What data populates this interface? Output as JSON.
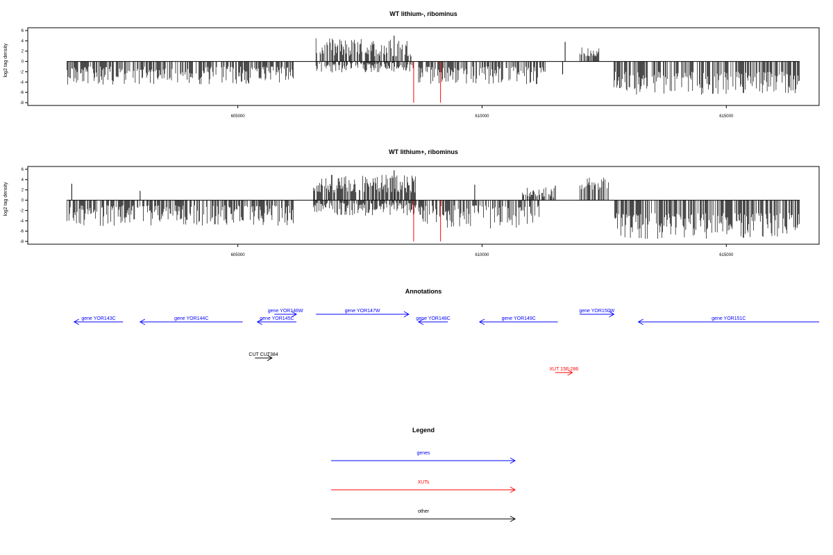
{
  "colors": {
    "genes": "#0000ff",
    "xuts": "#ff0000",
    "other": "#000000",
    "bars": "#000000",
    "marker": "#ff0000"
  },
  "chart_data": [
    {
      "type": "bar",
      "title": "WT lithium-, ribominus",
      "ylabel": "log2 tag density",
      "xlim": [
        600700,
        616900
      ],
      "ylim": [
        -8,
        6
      ],
      "xticks": [
        605000,
        610000,
        615000
      ],
      "xtick_labels": [
        "605000",
        "610000",
        "615000"
      ],
      "yticks": [
        6,
        4,
        2,
        0,
        -2,
        -4,
        -6,
        -8
      ],
      "ytick_labels": [
        "6",
        "4",
        "2",
        "0",
        "-2",
        "-4",
        "-6",
        "-8"
      ],
      "grid": false,
      "marker_positions": [
        608600,
        609150
      ],
      "segments": [
        {
          "start": 601500,
          "end": 606150,
          "strand": "minus",
          "min": 1.0,
          "max": 4.5
        },
        {
          "start": 606600,
          "end": 608600,
          "strand": "plus",
          "min": 1.0,
          "max": 4.5
        },
        {
          "start": 606600,
          "end": 608600,
          "strand": "minus",
          "min": 0.3,
          "max": 2.2
        },
        {
          "start": 608700,
          "end": 611300,
          "strand": "minus",
          "min": 1.0,
          "max": 4.5
        },
        {
          "start": 612000,
          "end": 612400,
          "strand": "plus",
          "min": 1.0,
          "max": 2.8
        },
        {
          "start": 612700,
          "end": 616500,
          "strand": "minus",
          "min": 2.0,
          "max": 6.5
        }
      ],
      "spikes": [
        {
          "x": 608200,
          "value": 5.0
        },
        {
          "x": 611700,
          "value": 3.8
        },
        {
          "x": 611650,
          "value": -2.5
        }
      ]
    },
    {
      "type": "bar",
      "title": "WT lithium+, ribominus",
      "ylabel": "log2 tag density",
      "xlim": [
        600700,
        616900
      ],
      "ylim": [
        -8,
        6
      ],
      "xticks": [
        605000,
        610000,
        615000
      ],
      "xtick_labels": [
        "605000",
        "610000",
        "615000"
      ],
      "yticks": [
        6,
        4,
        2,
        0,
        -2,
        -4,
        -6,
        -8
      ],
      "ytick_labels": [
        "6",
        "4",
        "2",
        "0",
        "-2",
        "-4",
        "-6",
        "-8"
      ],
      "grid": false,
      "marker_positions": [
        608600,
        609150
      ],
      "segments": [
        {
          "start": 601500,
          "end": 606150,
          "strand": "minus",
          "min": 1.0,
          "max": 5.0
        },
        {
          "start": 606550,
          "end": 608650,
          "strand": "plus",
          "min": 1.5,
          "max": 5.0
        },
        {
          "start": 606550,
          "end": 608650,
          "strand": "minus",
          "min": 0.5,
          "max": 3.0
        },
        {
          "start": 608700,
          "end": 611200,
          "strand": "minus",
          "min": 1.0,
          "max": 5.5
        },
        {
          "start": 610800,
          "end": 611500,
          "strand": "plus",
          "min": 0.5,
          "max": 2.5
        },
        {
          "start": 612000,
          "end": 612600,
          "strand": "plus",
          "min": 2.0,
          "max": 4.5
        },
        {
          "start": 612700,
          "end": 616500,
          "strand": "minus",
          "min": 2.5,
          "max": 7.5
        }
      ],
      "spikes": [
        {
          "x": 601600,
          "value": 3.2
        },
        {
          "x": 603000,
          "value": 1.8
        },
        {
          "x": 608200,
          "value": 5.8
        },
        {
          "x": 611500,
          "value": 2.8
        },
        {
          "x": 609850,
          "value": 3.0
        }
      ]
    }
  ],
  "annotations": {
    "title": "Annotations",
    "xlim": [
      600700,
      616900
    ],
    "features": [
      {
        "label": "gene YOR143C",
        "kind": "genes",
        "start": 601650,
        "end": 602650,
        "strand": "-",
        "row": 0
      },
      {
        "label": "gene YOR144C",
        "kind": "genes",
        "start": 603000,
        "end": 605100,
        "strand": "-",
        "row": 0
      },
      {
        "label": "gene YOR145C",
        "kind": "genes",
        "start": 605400,
        "end": 606200,
        "strand": "-",
        "row": 0
      },
      {
        "label": "gene YOR146W",
        "kind": "genes",
        "start": 605750,
        "end": 606200,
        "strand": "+",
        "row": 1
      },
      {
        "label": "gene YOR147W",
        "kind": "genes",
        "start": 606600,
        "end": 608500,
        "strand": "+",
        "row": 1
      },
      {
        "label": "gene YOR148C",
        "kind": "genes",
        "start": 608700,
        "end": 609300,
        "strand": "-",
        "row": 0
      },
      {
        "label": "gene YOR149C",
        "kind": "genes",
        "start": 609950,
        "end": 611550,
        "strand": "-",
        "row": 0
      },
      {
        "label": "gene YOR150W",
        "kind": "genes",
        "start": 612000,
        "end": 612700,
        "strand": "+",
        "row": 1
      },
      {
        "label": "gene YOR151C",
        "kind": "genes",
        "start": 613200,
        "end": 616900,
        "strand": "-",
        "row": 0
      },
      {
        "label": "CUT CUT384",
        "kind": "other",
        "start": 605350,
        "end": 605700,
        "strand": "+",
        "row": 2
      },
      {
        "label": "XUT 15F-286",
        "kind": "xuts",
        "start": 611500,
        "end": 611850,
        "strand": "+",
        "row": 3
      }
    ]
  },
  "legend": {
    "title": "Legend",
    "items": [
      {
        "label": "genes",
        "kind": "genes"
      },
      {
        "label": "XUTs",
        "kind": "xuts"
      },
      {
        "label": "other",
        "kind": "other"
      }
    ]
  }
}
